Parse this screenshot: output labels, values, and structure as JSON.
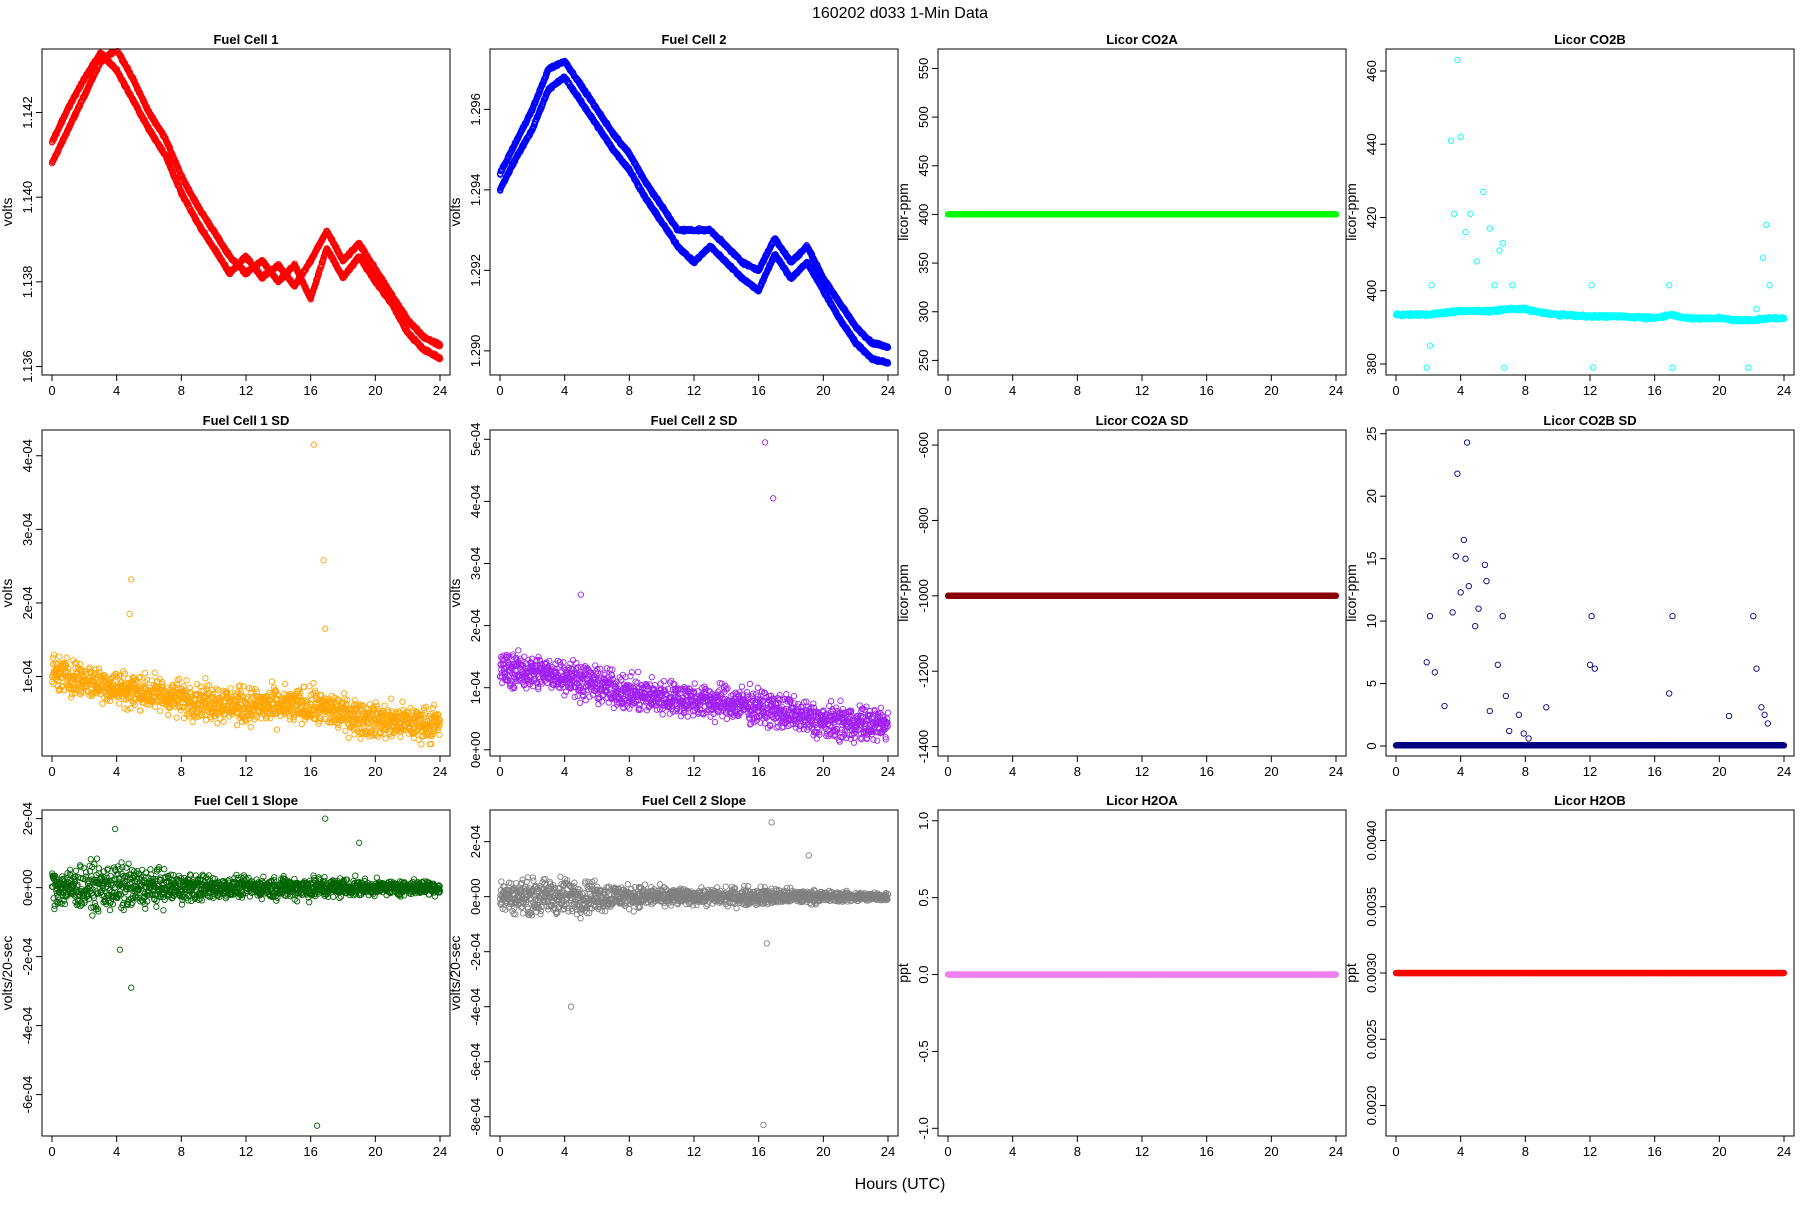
{
  "main_title": "160202   d033   1-Min Data",
  "x_axis_label": "Hours (UTC)",
  "chart_data": [
    {
      "id": "fc1",
      "type": "scatter",
      "title": "Fuel Cell 1",
      "ylabel": "volts",
      "color": "#ff0000",
      "xlim": [
        0,
        24
      ],
      "ylim": [
        1.1358,
        1.1435
      ],
      "x_ticks": [
        "0",
        "4",
        "8",
        "12",
        "16",
        "20",
        "24"
      ],
      "y_ticks": [
        {
          "v": 1.136,
          "label": "1.136"
        },
        {
          "v": 1.138,
          "label": "1.138"
        },
        {
          "v": 1.14,
          "label": "1.140"
        },
        {
          "v": 1.142,
          "label": "1.142"
        }
      ],
      "series": [
        {
          "x": [
            0,
            1,
            2,
            3,
            4,
            5,
            6,
            7,
            8,
            9,
            10,
            11,
            12,
            13,
            14,
            15,
            16,
            17,
            18,
            19,
            20,
            21,
            22,
            23,
            24
          ],
          "y": [
            1.1408,
            1.1416,
            1.1424,
            1.1432,
            1.1435,
            1.1428,
            1.142,
            1.1414,
            1.1405,
            1.1398,
            1.1392,
            1.1386,
            1.1382,
            1.1385,
            1.138,
            1.1384,
            1.1376,
            1.1388,
            1.1381,
            1.1386,
            1.138,
            1.1375,
            1.1368,
            1.1364,
            1.1362
          ]
        },
        {
          "x": [
            0,
            1,
            2,
            3,
            4,
            5,
            6,
            7,
            8,
            9,
            10,
            11,
            12,
            13,
            14,
            15,
            16,
            17,
            18,
            19,
            20,
            21,
            22,
            23,
            24
          ],
          "y": [
            1.1413,
            1.1421,
            1.1428,
            1.1434,
            1.143,
            1.1423,
            1.1416,
            1.141,
            1.1401,
            1.1394,
            1.1388,
            1.1382,
            1.1386,
            1.1381,
            1.1384,
            1.1379,
            1.1385,
            1.1392,
            1.1385,
            1.1389,
            1.1383,
            1.1377,
            1.1371,
            1.1367,
            1.1365
          ]
        }
      ]
    },
    {
      "id": "fc2",
      "type": "scatter",
      "title": "Fuel Cell 2",
      "ylabel": "volts",
      "color": "#0000ff",
      "xlim": [
        0,
        24
      ],
      "ylim": [
        1.2894,
        1.2975
      ],
      "x_ticks": [
        "0",
        "4",
        "8",
        "12",
        "16",
        "20",
        "24"
      ],
      "y_ticks": [
        {
          "v": 1.29,
          "label": "1.290"
        },
        {
          "v": 1.292,
          "label": "1.292"
        },
        {
          "v": 1.294,
          "label": "1.294"
        },
        {
          "v": 1.296,
          "label": "1.296"
        }
      ],
      "series": [
        {
          "x": [
            0,
            1,
            2,
            3,
            4,
            5,
            6,
            7,
            8,
            9,
            10,
            11,
            12,
            13,
            14,
            15,
            16,
            17,
            18,
            19,
            20,
            21,
            22,
            23,
            24
          ],
          "y": [
            1.294,
            1.2948,
            1.2955,
            1.2965,
            1.2968,
            1.2962,
            1.2956,
            1.295,
            1.2945,
            1.2938,
            1.2932,
            1.2926,
            1.2922,
            1.2926,
            1.2922,
            1.2918,
            1.2915,
            1.2924,
            1.2918,
            1.2922,
            1.2915,
            1.2908,
            1.2902,
            1.2898,
            1.2897
          ]
        },
        {
          "x": [
            0,
            1,
            2,
            3,
            4,
            5,
            6,
            7,
            8,
            9,
            10,
            11,
            12,
            13,
            14,
            15,
            16,
            17,
            18,
            19,
            20,
            21,
            22,
            23,
            24
          ],
          "y": [
            1.2944,
            1.2952,
            1.296,
            1.297,
            1.2972,
            1.2966,
            1.296,
            1.2954,
            1.2949,
            1.2942,
            1.2936,
            1.293,
            1.293,
            1.293,
            1.2926,
            1.2922,
            1.292,
            1.2928,
            1.2922,
            1.2926,
            1.2918,
            1.2912,
            1.2906,
            1.2902,
            1.2901
          ]
        }
      ]
    },
    {
      "id": "co2a",
      "type": "scatter",
      "title": "Licor CO2A",
      "ylabel": "licor-ppm",
      "color": "#00ff00",
      "xlim": [
        0,
        24
      ],
      "ylim": [
        235,
        570
      ],
      "x_ticks": [
        "0",
        "4",
        "8",
        "12",
        "16",
        "20",
        "24"
      ],
      "y_ticks": [
        {
          "v": 250,
          "label": "250"
        },
        {
          "v": 300,
          "label": "300"
        },
        {
          "v": 350,
          "label": "350"
        },
        {
          "v": 400,
          "label": "400"
        },
        {
          "v": 450,
          "label": "450"
        },
        {
          "v": 500,
          "label": "500"
        },
        {
          "v": 550,
          "label": "550"
        }
      ],
      "series": [
        {
          "x": [
            0,
            24
          ],
          "y": [
            400,
            400
          ]
        }
      ]
    },
    {
      "id": "co2b",
      "type": "scatter",
      "title": "Licor CO2B",
      "ylabel": "licor-ppm",
      "color": "#00ffff",
      "xlim": [
        0,
        24
      ],
      "ylim": [
        377,
        466
      ],
      "x_ticks": [
        "0",
        "4",
        "8",
        "12",
        "16",
        "20",
        "24"
      ],
      "y_ticks": [
        {
          "v": 380,
          "label": "380"
        },
        {
          "v": 400,
          "label": "400"
        },
        {
          "v": 420,
          "label": "420"
        },
        {
          "v": 440,
          "label": "440"
        },
        {
          "v": 460,
          "label": "460"
        }
      ],
      "series": [
        {
          "x": [
            0,
            2,
            3,
            4,
            5,
            6,
            7,
            8,
            9,
            10,
            12,
            14,
            16,
            17,
            18,
            20,
            21,
            22,
            23,
            24
          ],
          "y": [
            393.5,
            393.5,
            394,
            394.5,
            394.5,
            394.5,
            395,
            395,
            394,
            393.5,
            393,
            393,
            392.5,
            393.5,
            392.5,
            392.5,
            392,
            392,
            392.5,
            392.5
          ]
        }
      ],
      "outliers": {
        "x": [
          1.9,
          2.1,
          2.2,
          3.4,
          3.6,
          3.8,
          4.0,
          4.3,
          4.6,
          5.0,
          5.4,
          5.8,
          6.1,
          6.4,
          6.6,
          6.7,
          7.2,
          12.1,
          12.2,
          16.9,
          17.1,
          21.8,
          22.3,
          22.7,
          22.9,
          23.1
        ],
        "y": [
          379,
          385,
          401.5,
          441,
          421,
          463,
          442,
          416,
          421,
          408,
          427,
          417,
          401.5,
          411,
          413,
          379,
          401.5,
          401.5,
          379,
          401.5,
          379,
          379,
          395,
          409,
          418,
          401.5
        ]
      }
    },
    {
      "id": "fc1sd",
      "type": "scatter",
      "title": "Fuel Cell 1 SD",
      "ylabel": "volts",
      "color": "#ffa500",
      "xlim": [
        0,
        24
      ],
      "ylim": [
        -8e-06,
        0.000435
      ],
      "x_ticks": [
        "0",
        "4",
        "8",
        "12",
        "16",
        "20",
        "24"
      ],
      "y_ticks": [
        {
          "v": 0.0001,
          "label": "1e-04"
        },
        {
          "v": 0.0002,
          "label": "2e-04"
        },
        {
          "v": 0.0003,
          "label": "3e-04"
        },
        {
          "v": 0.0004,
          "label": "4e-04"
        }
      ],
      "trend": {
        "x": [
          0,
          4,
          8,
          12,
          16,
          20,
          24
        ],
        "y": [
          0.000105,
          8.5e-05,
          7e-05,
          6e-05,
          6e-05,
          4e-05,
          3.5e-05
        ]
      },
      "spread": 3.5e-05,
      "outliers": {
        "x": [
          4.9,
          4.8,
          16.2,
          16.8,
          16.9
        ],
        "y": [
          0.000232,
          0.000185,
          0.000415,
          0.000258,
          0.000165
        ]
      }
    },
    {
      "id": "fc2sd",
      "type": "scatter",
      "title": "Fuel Cell 2 SD",
      "ylabel": "volts",
      "color": "#a020f0",
      "xlim": [
        0,
        24
      ],
      "ylim": [
        -1e-05,
        0.000515
      ],
      "x_ticks": [
        "0",
        "4",
        "8",
        "12",
        "16",
        "20",
        "24"
      ],
      "y_ticks": [
        {
          "v": 0,
          "label": "0e+00"
        },
        {
          "v": 0.0001,
          "label": "1e-04"
        },
        {
          "v": 0.0002,
          "label": "2e-04"
        },
        {
          "v": 0.0003,
          "label": "3e-04"
        },
        {
          "v": 0.0004,
          "label": "4e-04"
        },
        {
          "v": 0.0005,
          "label": "5e-04"
        }
      ],
      "trend": {
        "x": [
          0,
          4,
          8,
          12,
          16,
          20,
          24
        ],
        "y": [
          0.00013,
          0.00012,
          9e-05,
          8e-05,
          7e-05,
          4.5e-05,
          4e-05
        ]
      },
      "spread": 4e-05,
      "outliers": {
        "x": [
          5.0,
          16.4,
          16.9
        ],
        "y": [
          0.00025,
          0.000495,
          0.000405
        ]
      }
    },
    {
      "id": "co2asd",
      "type": "scatter",
      "title": "Licor CO2A SD",
      "ylabel": "licor-ppm",
      "color": "#8b0000",
      "xlim": [
        0,
        24
      ],
      "ylim": [
        -1425,
        -560
      ],
      "x_ticks": [
        "0",
        "4",
        "8",
        "12",
        "16",
        "20",
        "24"
      ],
      "y_ticks": [
        {
          "v": -1400,
          "label": "-1400"
        },
        {
          "v": -1200,
          "label": "-1200"
        },
        {
          "v": -1000,
          "label": "-1000"
        },
        {
          "v": -800,
          "label": "-800"
        },
        {
          "v": -600,
          "label": "-600"
        }
      ],
      "series": [
        {
          "x": [
            0,
            24
          ],
          "y": [
            -1000,
            -1000
          ]
        }
      ]
    },
    {
      "id": "co2bsd",
      "type": "scatter",
      "title": "Licor CO2B SD",
      "ylabel": "licor-ppm",
      "color": "#000080",
      "xlim": [
        0,
        24
      ],
      "ylim": [
        -0.8,
        25.3
      ],
      "x_ticks": [
        "0",
        "4",
        "8",
        "12",
        "16",
        "20",
        "24"
      ],
      "y_ticks": [
        {
          "v": 0,
          "label": "0"
        },
        {
          "v": 5,
          "label": "5"
        },
        {
          "v": 10,
          "label": "10"
        },
        {
          "v": 15,
          "label": "15"
        },
        {
          "v": 20,
          "label": "20"
        },
        {
          "v": 25,
          "label": "25"
        }
      ],
      "series": [
        {
          "x": [
            0,
            24
          ],
          "y": [
            0.05,
            0.05
          ]
        }
      ],
      "outliers": {
        "x": [
          1.9,
          2.1,
          2.4,
          3.0,
          3.5,
          3.7,
          3.8,
          4.0,
          4.2,
          4.3,
          4.4,
          4.5,
          4.9,
          5.1,
          5.5,
          5.6,
          5.8,
          6.3,
          6.6,
          6.8,
          7.0,
          7.6,
          7.9,
          8.2,
          9.3,
          12.0,
          12.1,
          12.3,
          16.9,
          17.1,
          20.6,
          22.1,
          22.3,
          22.6,
          22.8,
          23.0
        ],
        "y": [
          6.7,
          10.4,
          5.9,
          3.2,
          10.7,
          15.2,
          21.8,
          12.3,
          16.5,
          15.0,
          24.3,
          12.8,
          9.6,
          11.0,
          14.5,
          13.2,
          2.8,
          6.5,
          10.4,
          4.0,
          1.2,
          2.5,
          1.0,
          0.6,
          3.1,
          6.5,
          10.4,
          6.2,
          4.2,
          10.4,
          2.4,
          10.4,
          6.2,
          3.1,
          2.5,
          1.8
        ]
      }
    },
    {
      "id": "fc1sl",
      "type": "scatter",
      "title": "Fuel Cell 1 Slope",
      "ylabel": "volts/20-sec",
      "color": "#006400",
      "xlim": [
        0,
        24
      ],
      "ylim": [
        -0.00072,
        0.000225
      ],
      "x_ticks": [
        "0",
        "4",
        "8",
        "12",
        "16",
        "20",
        "24"
      ],
      "y_ticks": [
        {
          "v": -0.0006,
          "label": "-6e-04"
        },
        {
          "v": -0.0004,
          "label": "-4e-04"
        },
        {
          "v": -0.0002,
          "label": "-2e-04"
        },
        {
          "v": 0,
          "label": "0e+00"
        },
        {
          "v": 0.0002,
          "label": "2e-04"
        }
      ],
      "trend": {
        "x": [
          0,
          4,
          8,
          12,
          16,
          20,
          24
        ],
        "y": [
          0,
          0,
          0,
          0,
          0,
          0,
          0
        ]
      },
      "spread_profile": {
        "x": [
          0,
          4,
          8,
          12,
          16,
          20,
          24
        ],
        "y": [
          8e-05,
          0.0001,
          6e-05,
          4e-05,
          5e-05,
          3e-05,
          3e-05
        ]
      },
      "outliers": {
        "x": [
          3.9,
          4.2,
          4.9,
          16.4,
          16.9,
          19.0
        ],
        "y": [
          0.00017,
          -0.00018,
          -0.00029,
          -0.00069,
          0.0002,
          0.00013
        ]
      }
    },
    {
      "id": "fc2sl",
      "type": "scatter",
      "title": "Fuel Cell 2 Slope",
      "ylabel": "volts/20-sec",
      "color": "#808080",
      "xlim": [
        0,
        24
      ],
      "ylim": [
        -0.00087,
        0.000315
      ],
      "x_ticks": [
        "0",
        "4",
        "8",
        "12",
        "16",
        "20",
        "24"
      ],
      "y_ticks": [
        {
          "v": -0.0008,
          "label": "-8e-04"
        },
        {
          "v": -0.0006,
          "label": "-6e-04"
        },
        {
          "v": -0.0004,
          "label": "-4e-04"
        },
        {
          "v": -0.0002,
          "label": "-2e-04"
        },
        {
          "v": 0,
          "label": "0e+00"
        },
        {
          "v": 0.0002,
          "label": "2e-04"
        }
      ],
      "trend": {
        "x": [
          0,
          4,
          8,
          12,
          16,
          20,
          24
        ],
        "y": [
          0,
          0,
          0,
          0,
          0,
          0,
          0
        ]
      },
      "spread_profile": {
        "x": [
          0,
          4,
          8,
          12,
          16,
          20,
          24
        ],
        "y": [
          8e-05,
          0.0001,
          6e-05,
          4e-05,
          5e-05,
          3e-05,
          2e-05
        ]
      },
      "outliers": {
        "x": [
          4.4,
          16.3,
          16.5,
          16.8,
          19.1
        ],
        "y": [
          -0.0004,
          -0.00083,
          -0.00017,
          0.00027,
          0.00015
        ]
      }
    },
    {
      "id": "h2oa",
      "type": "scatter",
      "title": "Licor H2OA",
      "ylabel": "ppt",
      "color": "#ee82ee",
      "xlim": [
        0,
        24
      ],
      "ylim": [
        -1.05,
        1.07
      ],
      "x_ticks": [
        "0",
        "4",
        "8",
        "12",
        "16",
        "20",
        "24"
      ],
      "y_ticks": [
        {
          "v": -1.0,
          "label": "-1.0"
        },
        {
          "v": -0.5,
          "label": "-0.5"
        },
        {
          "v": 0,
          "label": "0.0"
        },
        {
          "v": 0.5,
          "label": "0.5"
        },
        {
          "v": 1.0,
          "label": "1.0"
        }
      ],
      "series": [
        {
          "x": [
            0,
            24
          ],
          "y": [
            0,
            0
          ]
        }
      ]
    },
    {
      "id": "h2ob",
      "type": "scatter",
      "title": "Licor H2OB",
      "ylabel": "ppt",
      "color": "#ff0000",
      "xlim": [
        0,
        24
      ],
      "ylim": [
        0.00177,
        0.00423
      ],
      "x_ticks": [
        "0",
        "4",
        "8",
        "12",
        "16",
        "20",
        "24"
      ],
      "y_ticks": [
        {
          "v": 0.002,
          "label": "0.0020"
        },
        {
          "v": 0.0025,
          "label": "0.0025"
        },
        {
          "v": 0.003,
          "label": "0.0030"
        },
        {
          "v": 0.0035,
          "label": "0.0035"
        },
        {
          "v": 0.004,
          "label": "0.0040"
        }
      ],
      "series": [
        {
          "x": [
            0,
            24
          ],
          "y": [
            0.003,
            0.003
          ]
        }
      ]
    }
  ]
}
